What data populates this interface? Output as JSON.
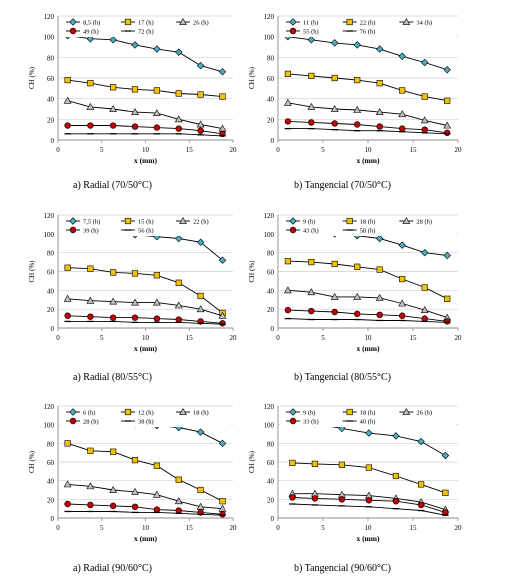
{
  "chart_data": [
    {
      "type": "line",
      "caption": "a)  Radial (70/50°C)",
      "xlabel": "x (mm)",
      "ylabel": "CH (%)",
      "xlim": [
        0,
        20
      ],
      "ylim": [
        0,
        120
      ],
      "xticks": [
        0,
        5,
        10,
        15,
        20
      ],
      "yticks": [
        0,
        20,
        40,
        60,
        80,
        100,
        120
      ],
      "grid": "horizontal",
      "legend": "top",
      "x": [
        1.1,
        3.7,
        6.3,
        8.8,
        11.3,
        13.8,
        16.3,
        18.8
      ],
      "series": [
        {
          "name": "8,5 (h)",
          "marker": "diamond",
          "color": "#4bacc6",
          "values": [
            101,
            98,
            97,
            92,
            88,
            85,
            72,
            66
          ]
        },
        {
          "name": "17 (h)",
          "marker": "square",
          "color": "#f2c200",
          "values": [
            58,
            55,
            51,
            49,
            48,
            45,
            44,
            42
          ]
        },
        {
          "name": "26 (h)",
          "marker": "triangle",
          "color": "#bfbfbf",
          "values": [
            38,
            32,
            30,
            27,
            26,
            20,
            15,
            11
          ]
        },
        {
          "name": "49 (h)",
          "marker": "circle",
          "color": "#c00000",
          "values": [
            14,
            14,
            14,
            13,
            12,
            11,
            9,
            6
          ]
        },
        {
          "name": "72 (h)",
          "marker": "dash",
          "color": "#000000",
          "values": [
            6,
            6,
            6,
            6,
            6,
            6,
            5,
            4
          ]
        }
      ]
    },
    {
      "type": "line",
      "caption": "b)  Tangencial (70/50°C)",
      "xlabel": "x (mm)",
      "ylabel": "CH (%)",
      "xlim": [
        0,
        20
      ],
      "ylim": [
        0,
        120
      ],
      "xticks": [
        0,
        5,
        10,
        15,
        20
      ],
      "yticks": [
        0,
        20,
        40,
        60,
        80,
        100,
        120
      ],
      "grid": "horizontal",
      "legend": "top",
      "x": [
        1.1,
        3.7,
        6.3,
        8.8,
        11.3,
        13.8,
        16.3,
        18.8
      ],
      "series": [
        {
          "name": "11 (h)",
          "marker": "diamond",
          "color": "#4bacc6",
          "values": [
            100,
            97,
            94,
            92,
            88,
            81,
            75,
            68
          ]
        },
        {
          "name": "22 (h)",
          "marker": "square",
          "color": "#f2c200",
          "values": [
            64,
            62,
            60,
            58,
            55,
            48,
            42,
            38
          ]
        },
        {
          "name": "34 (h)",
          "marker": "triangle",
          "color": "#bfbfbf",
          "values": [
            36,
            32,
            30,
            29,
            27,
            25,
            19,
            14
          ]
        },
        {
          "name": "55 (h)",
          "marker": "circle",
          "color": "#c00000",
          "values": [
            18,
            17,
            16,
            15,
            13,
            11,
            10,
            7
          ]
        },
        {
          "name": "76 (h)",
          "marker": "dash",
          "color": "#000000",
          "values": [
            11,
            11,
            10,
            9,
            9,
            8,
            7,
            6
          ]
        }
      ]
    },
    {
      "type": "line",
      "caption": "a)  Radial (80/55°C)",
      "xlabel": "x (mm)",
      "ylabel": "CH (%)",
      "xlim": [
        0,
        20
      ],
      "ylim": [
        0,
        120
      ],
      "xticks": [
        0,
        5,
        10,
        15,
        20
      ],
      "yticks": [
        0,
        20,
        40,
        60,
        80,
        100,
        120
      ],
      "grid": "horizontal",
      "legend": "top",
      "x": [
        1.1,
        3.7,
        6.3,
        8.8,
        11.3,
        13.8,
        16.3,
        18.8
      ],
      "series": [
        {
          "name": "7,5 (h)",
          "marker": "diamond",
          "color": "#4bacc6",
          "values": [
            110,
            105,
            103,
            99,
            97,
            95,
            91,
            72
          ]
        },
        {
          "name": "15 (h)",
          "marker": "square",
          "color": "#f2c200",
          "values": [
            64,
            63,
            59,
            58,
            56,
            48,
            34,
            16
          ]
        },
        {
          "name": "22 (h)",
          "marker": "triangle",
          "color": "#bfbfbf",
          "values": [
            31,
            29,
            28,
            27,
            27,
            24,
            20,
            13
          ]
        },
        {
          "name": "39 (h)",
          "marker": "circle",
          "color": "#c00000",
          "values": [
            13,
            12,
            11,
            11,
            10,
            9,
            7,
            5
          ]
        },
        {
          "name": "56 (h)",
          "marker": "dash",
          "color": "#000000",
          "values": [
            7,
            7,
            7,
            6,
            6,
            6,
            5,
            4
          ]
        }
      ]
    },
    {
      "type": "line",
      "caption": "b)  Tangencial (80/55°C)",
      "xlabel": "x (mm)",
      "ylabel": "CH (%)",
      "xlim": [
        0,
        20
      ],
      "ylim": [
        0,
        120
      ],
      "xticks": [
        0,
        5,
        10,
        15,
        20
      ],
      "yticks": [
        0,
        20,
        40,
        60,
        80,
        100,
        120
      ],
      "grid": "horizontal",
      "legend": "top",
      "x": [
        1.1,
        3.7,
        6.3,
        8.8,
        11.3,
        13.8,
        16.3,
        18.8
      ],
      "series": [
        {
          "name": "9 (h)",
          "marker": "diamond",
          "color": "#4bacc6",
          "values": [
            107,
            105,
            100,
            98,
            95,
            88,
            80,
            77
          ]
        },
        {
          "name": "18 (h)",
          "marker": "square",
          "color": "#f2c200",
          "values": [
            71,
            70,
            68,
            65,
            62,
            52,
            43,
            31
          ]
        },
        {
          "name": "28 (h)",
          "marker": "triangle",
          "color": "#bfbfbf",
          "values": [
            40,
            38,
            33,
            33,
            32,
            26,
            19,
            11
          ]
        },
        {
          "name": "43 (h)",
          "marker": "circle",
          "color": "#c00000",
          "values": [
            19,
            18,
            17,
            15,
            14,
            13,
            10,
            7
          ]
        },
        {
          "name": "58 (h)",
          "marker": "dash",
          "color": "#000000",
          "values": [
            10,
            9,
            9,
            9,
            8,
            8,
            7,
            6
          ]
        }
      ]
    },
    {
      "type": "line",
      "caption": "a)  Radial (90/60°C)",
      "xlabel": "x (mm)",
      "ylabel": "CH (%)",
      "xlim": [
        0,
        20
      ],
      "ylim": [
        0,
        120
      ],
      "xticks": [
        0,
        5,
        10,
        15,
        20
      ],
      "yticks": [
        0,
        20,
        40,
        60,
        80,
        100,
        120
      ],
      "grid": "horizontal",
      "legend": "top",
      "x": [
        1.1,
        3.7,
        6.3,
        8.8,
        11.3,
        13.8,
        16.3,
        18.8
      ],
      "series": [
        {
          "name": "6 (h)",
          "marker": "diamond",
          "color": "#4bacc6",
          "values": [
            113,
            108,
            104,
            101,
            99,
            97,
            92,
            80
          ]
        },
        {
          "name": "12 (h)",
          "marker": "square",
          "color": "#f2c200",
          "values": [
            80,
            72,
            71,
            62,
            56,
            41,
            30,
            18
          ]
        },
        {
          "name": "18 (h)",
          "marker": "triangle",
          "color": "#bfbfbf",
          "values": [
            36,
            34,
            30,
            28,
            25,
            18,
            12,
            10
          ]
        },
        {
          "name": "28 (h)",
          "marker": "circle",
          "color": "#c00000",
          "values": [
            15,
            14,
            13,
            12,
            9,
            8,
            6,
            4
          ]
        },
        {
          "name": "38 (h)",
          "marker": "dash",
          "color": "#000000",
          "values": [
            7,
            7,
            7,
            6,
            6,
            5,
            4,
            3
          ]
        }
      ]
    },
    {
      "type": "line",
      "caption": "b)  Tangencial (90/60°C)",
      "xlabel": "x (mm)",
      "ylabel": "CH (%)",
      "xlim": [
        0,
        20
      ],
      "ylim": [
        0,
        120
      ],
      "xticks": [
        0,
        5,
        10,
        15,
        20
      ],
      "yticks": [
        0,
        20,
        40,
        60,
        80,
        100,
        120
      ],
      "grid": "horizontal",
      "legend": "top",
      "x": [
        1.6,
        4.1,
        7.1,
        10.1,
        13.1,
        15.9,
        18.6
      ],
      "series": [
        {
          "name": "9 (h)",
          "marker": "diamond",
          "color": "#4bacc6",
          "values": [
            104,
            101,
            96,
            91,
            88,
            82,
            67
          ]
        },
        {
          "name": "18 (h)",
          "marker": "square",
          "color": "#f2c200",
          "values": [
            59,
            58,
            57,
            54,
            45,
            36,
            27
          ]
        },
        {
          "name": "26 (h)",
          "marker": "triangle",
          "color": "#bfbfbf",
          "values": [
            26,
            26,
            25,
            24,
            21,
            17,
            9
          ]
        },
        {
          "name": "33 (h)",
          "marker": "circle",
          "color": "#c00000",
          "values": [
            22,
            21,
            20,
            19,
            18,
            14,
            6
          ]
        },
        {
          "name": "40 (h)",
          "marker": "dash",
          "color": "#000000",
          "values": [
            15,
            14,
            13,
            12,
            10,
            8,
            3
          ]
        }
      ]
    }
  ]
}
